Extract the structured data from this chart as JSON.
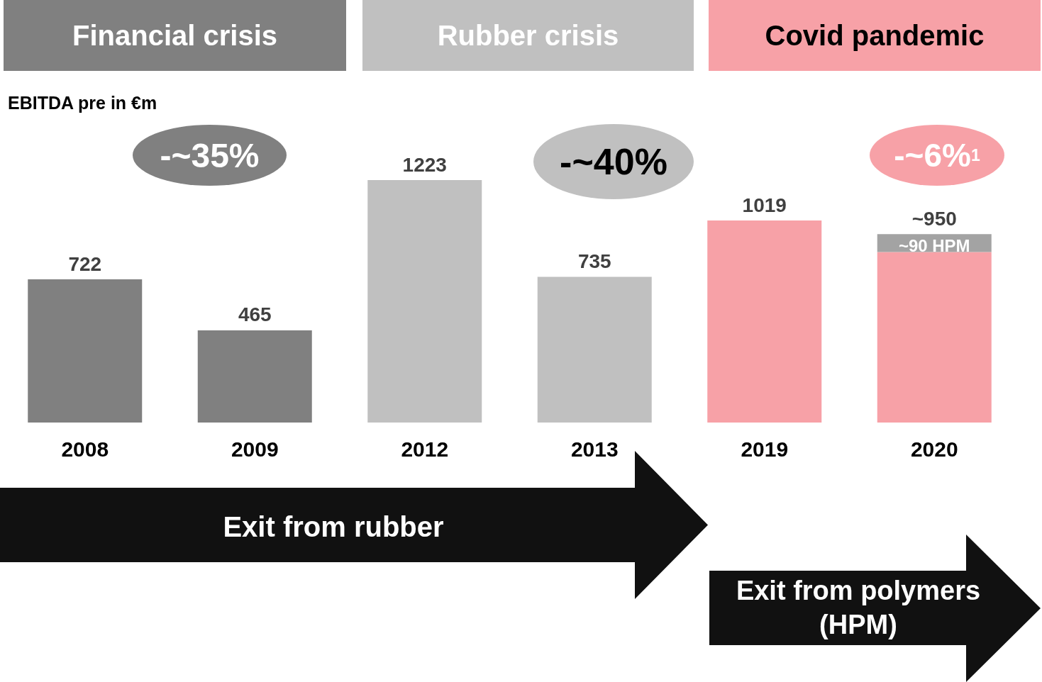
{
  "chart_data": {
    "type": "bar",
    "title": "EBITDA pre in €m",
    "categories": [
      "2008",
      "2009",
      "2012",
      "2013",
      "2019",
      "2020"
    ],
    "stacked": true,
    "tick_labels": "x",
    "series": [
      {
        "colors": [
          "#808080",
          "#808080",
          "#c0c0c0",
          "#c0c0c0",
          "#f7a1a7",
          "#f7a1a7"
        ],
        "values": [
          722,
          465,
          1223,
          735,
          1019,
          860
        ]
      },
      {
        "color": "#a3a3a3",
        "values": [
          null,
          null,
          null,
          null,
          null,
          90
        ],
        "value_labels": [
          null,
          null,
          null,
          null,
          null,
          "~90 HPM"
        ]
      }
    ],
    "totals": [
      "722",
      "465",
      "1223",
      "735",
      "1019",
      "~950"
    ],
    "annotations": [
      "Financial crisis",
      "Rubber crisis",
      "Covid pandemic",
      "-~35%",
      "-~40%",
      "-~6%$^{1}$",
      "Exit from rubber",
      "Exit from polymers (HPM)"
    ]
  }
}
